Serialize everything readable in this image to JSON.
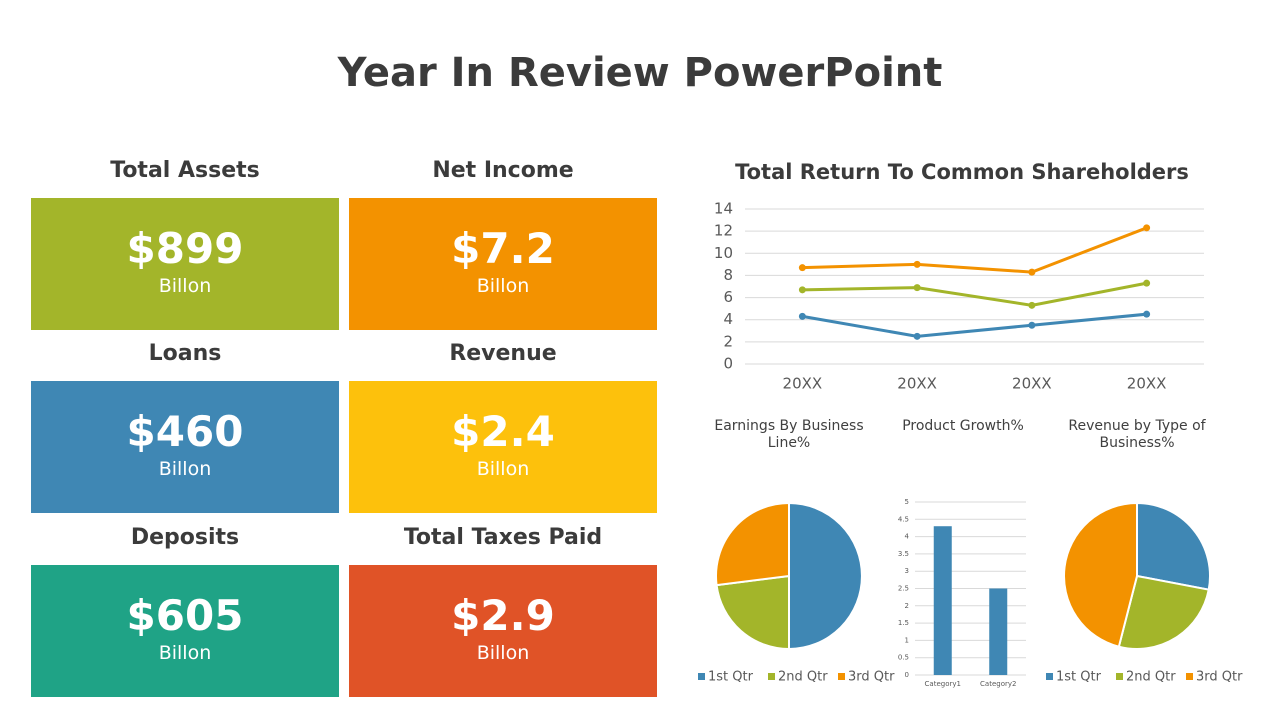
{
  "title": "Year In Review PowerPoint",
  "cards": [
    {
      "label": "Total Assets",
      "value": "$899",
      "unit": "Billon",
      "color": "#a3b52a"
    },
    {
      "label": "Net Income",
      "value": "$7.2",
      "unit": "Billon",
      "color": "#f39200"
    },
    {
      "label": "Loans",
      "value": "$460",
      "unit": "Billon",
      "color": "#3f87b4"
    },
    {
      "label": "Revenue",
      "value": "$2.4",
      "unit": "Billon",
      "color": "#fdc10c"
    },
    {
      "label": "Deposits",
      "value": "$605",
      "unit": "Billon",
      "color": "#1fa386"
    },
    {
      "label": "Total Taxes Paid",
      "value": "$2.9",
      "unit": "Billon",
      "color": "#e05327"
    }
  ],
  "chart_data": [
    {
      "type": "line",
      "title": "Total Return To Common Shareholders",
      "categories": [
        "20XX",
        "20XX",
        "20XX",
        "20XX"
      ],
      "series": [
        {
          "color": "#3f87b4",
          "values": [
            4.3,
            2.5,
            3.5,
            4.5
          ]
        },
        {
          "color": "#a3b52a",
          "values": [
            6.7,
            6.9,
            5.3,
            7.3
          ]
        },
        {
          "color": "#f39200",
          "values": [
            8.7,
            9.0,
            8.3,
            12.3
          ]
        }
      ],
      "ylim": [
        0,
        14
      ],
      "yticks": [
        0,
        2,
        4,
        6,
        8,
        10,
        12,
        14
      ],
      "grid": true
    },
    {
      "type": "pie",
      "title": "Earnings By Business Line%",
      "categories": [
        "1st Qtr",
        "2nd Qtr",
        "3rd Qtr"
      ],
      "values": [
        50,
        23,
        27
      ],
      "colors": [
        "#3f87b4",
        "#a3b52a",
        "#f39200"
      ]
    },
    {
      "type": "bar",
      "title": "Product Growth%",
      "categories": [
        "Category1",
        "Category2"
      ],
      "values": [
        4.3,
        2.5
      ],
      "color": "#3f87b4",
      "ylim": [
        0,
        5
      ],
      "yticks": [
        0,
        0.5,
        1,
        1.5,
        2,
        2.5,
        3,
        3.5,
        4,
        4.5,
        5
      ],
      "grid": true
    },
    {
      "type": "pie",
      "title": "Revenue by Type of Business%",
      "categories": [
        "1st Qtr",
        "2nd Qtr",
        "3rd Qtr"
      ],
      "values": [
        28,
        26,
        46
      ],
      "colors": [
        "#3f87b4",
        "#a3b52a",
        "#f39200"
      ]
    }
  ]
}
